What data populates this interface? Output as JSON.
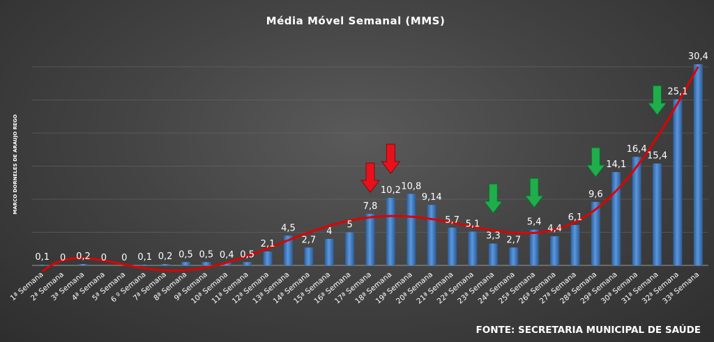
{
  "chart_data": {
    "type": "bar",
    "title": "Média Móvel Semanal (MMS)",
    "ylabel": "MARCO DORNELES DE ARAUJO REGO",
    "xlabel": "",
    "source": "FONTE: SECRETARIA MUNICIPAL DE SAÚDE",
    "ylim": [
      0,
      32
    ],
    "grid": true,
    "legend": "none",
    "categories": [
      "1ª Semana",
      "2ª Semana",
      "3ª Semana",
      "4ª Semana",
      "5ª Semana",
      "6 º Semana",
      "7ª Semana",
      "8ª Semana",
      "9ª Semana",
      "10ª Semana",
      "11ª Semana",
      "12ª Semana",
      "13ª Semana",
      "14ª Semana",
      "15ª Semana",
      "16ª Semana",
      "17ª Semana",
      "18ª Semana",
      "19ª Semana",
      "20ª Semana",
      "21ª Semana",
      "22ª Semana",
      "23ª Semana",
      "24ª Semana",
      "25ª Semana",
      "26ª Semana",
      "27ª Semana",
      "28ª Semana",
      "29ª Semana",
      "30ª Semana",
      "31ª Semana",
      "32ª Semana",
      "33ª Semana"
    ],
    "values": [
      0.1,
      0,
      0.2,
      0,
      0,
      0.1,
      0.2,
      0.5,
      0.5,
      0.4,
      0.5,
      2.1,
      4.5,
      2.7,
      4,
      5,
      7.8,
      10.2,
      10.8,
      9.14,
      5.7,
      5.1,
      3.3,
      2.7,
      5.4,
      4.4,
      6.1,
      9.6,
      14.1,
      16.4,
      15.4,
      25.1,
      30.4
    ],
    "value_labels": [
      "0,1",
      "0",
      "0,2",
      "0",
      "0",
      "0,1",
      "0,2",
      "0,5",
      "0,5",
      "0,4",
      "0,5",
      "2,1",
      "4,5",
      "2,7",
      "4",
      "5",
      "7,8",
      "10,2",
      "10,8",
      "9,14",
      "5,7",
      "5,1",
      "3,3",
      "2,7",
      "5,4",
      "4,4",
      "6,1",
      "9,6",
      "14,1",
      "16,4",
      "15,4",
      "25,1",
      "30,4"
    ],
    "trendline": {
      "type": "polynomial",
      "color": "#e00000"
    },
    "bar_color": "#3f7fcc",
    "annotations": [
      {
        "type": "arrow-down",
        "color": "#e8111b",
        "category_index": 16
      },
      {
        "type": "arrow-down",
        "color": "#e8111b",
        "category_index": 17
      },
      {
        "type": "arrow-down",
        "color": "#1fae4b",
        "category_index": 22
      },
      {
        "type": "arrow-down",
        "color": "#1fae4b",
        "category_index": 24
      },
      {
        "type": "arrow-down",
        "color": "#1fae4b",
        "category_index": 27
      },
      {
        "type": "arrow-down",
        "color": "#1fae4b",
        "category_index": 30
      }
    ]
  }
}
